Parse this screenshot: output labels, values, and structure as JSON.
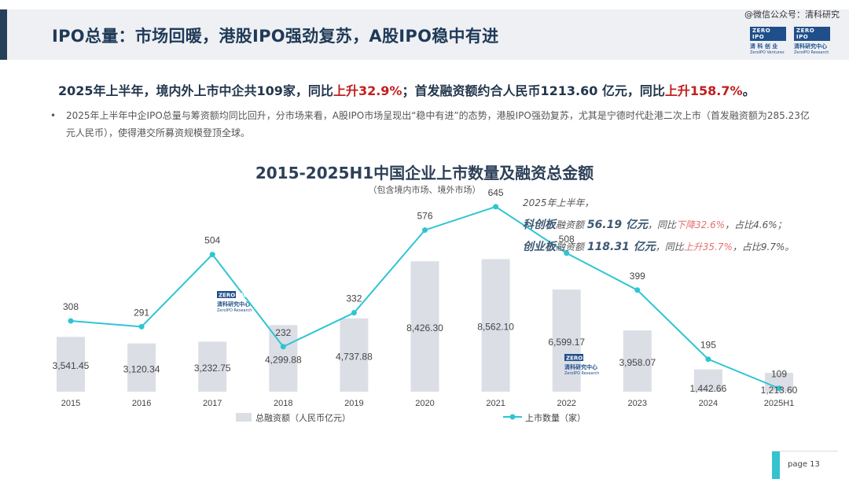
{
  "header": {
    "title": "IPO总量：市场回暖，港股IPO强劲复苏，A股IPO稳中有进",
    "watermark": "@微信公众号：清科研究"
  },
  "logos": {
    "zero_text": "ZERO IPO",
    "left_cn": "清 科 创 业",
    "left_en": "ZeroIPO Ventures",
    "right_cn": "清科研究中心",
    "right_en": "ZeroIPO Research"
  },
  "summary": {
    "part1": "2025年上半年，境内外上市中企共109家，同比",
    "part1_red": "上升32.9%",
    "part2": "；首发融资额约合人民币1213.60 亿元，同比",
    "part2_red": "上升158.7%",
    "part3": "。"
  },
  "bullet": {
    "symbol": "•",
    "text": "2025年上半年中企IPO总量与筹资额均同比回升，分市场来看，A股IPO市场呈现出“稳中有进”的态势，港股IPO强劲复苏，尤其是宁德时代赴港二次上市（首发融资额为285.23亿元人民币），使得港交所募资规模登顶全球。"
  },
  "annotation": {
    "line1": "2025年上半年，",
    "star_label": "科创板",
    "star_mid": "融资额 ",
    "star_value": "56.19 亿元",
    "star_yoy_prefix": "，同比",
    "star_yoy": "下降32.6%",
    "star_share": "，占比4.6%；",
    "chinext_label": "创业板",
    "chinext_mid": "融资额 ",
    "chinext_value": "118.31 亿元",
    "chinext_yoy_prefix": "，同比",
    "chinext_yoy": "上升35.7%",
    "chinext_share": "，占比9.7%。"
  },
  "chart_data": {
    "type": "bar",
    "title": "2015-2025H1中国企业上市数量及融资总金额",
    "subtitle": "（包含境内市场、境外市场）",
    "categories": [
      "2015",
      "2016",
      "2017",
      "2018",
      "2019",
      "2020",
      "2021",
      "2022",
      "2023",
      "2024",
      "2025H1"
    ],
    "series": [
      {
        "name": "总融资额（人民币亿元）",
        "kind": "bar",
        "values": [
          3541.45,
          3120.34,
          3232.75,
          4299.88,
          4737.88,
          8426.3,
          8562.1,
          6599.17,
          3958.07,
          1442.66,
          1213.6
        ],
        "labels": [
          "3,541.45",
          "3,120.34",
          "3,232.75",
          "4,299.88",
          "4,737.88",
          "8,426.30",
          "8,562.10",
          "6,599.17",
          "3,958.07",
          "1,442.66",
          "1,213.60"
        ]
      },
      {
        "name": "上市数量（家）",
        "kind": "line",
        "values": [
          308,
          291,
          504,
          232,
          332,
          576,
          645,
          508,
          399,
          195,
          109
        ]
      }
    ],
    "colors": {
      "bar": "#dcdee6",
      "line": "#2ec5d3",
      "text": "#444444"
    },
    "legend_position": "bottom",
    "grid": false
  },
  "footer": {
    "page": "page 13"
  }
}
